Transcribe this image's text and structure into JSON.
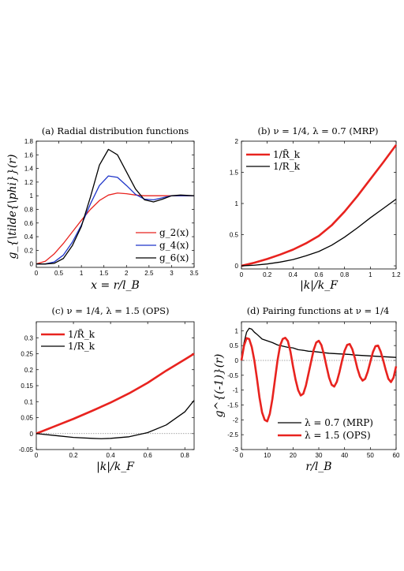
{
  "chart_data": [
    {
      "id": "a",
      "type": "line",
      "title": "(a) Radial distribution functions",
      "xlabel": "x = r/l_B",
      "ylabel": "g_{\\tilde{\\phi}}(r)",
      "xlim": [
        0,
        3.5
      ],
      "ylim": [
        -0.05,
        1.8
      ],
      "xticks": [
        0,
        0.5,
        1,
        1.5,
        2,
        2.5,
        3,
        3.5
      ],
      "xticklabels": [
        "0",
        "0.5",
        "1",
        "1.5",
        "2",
        "2.5",
        "3",
        "3.5"
      ],
      "yticks": [
        0,
        0.2,
        0.4,
        0.6,
        0.8,
        1,
        1.2,
        1.4,
        1.6,
        1.8
      ],
      "yticklabels": [
        "0",
        "0.2",
        "0.4",
        "0.6",
        "0.8",
        "1",
        "1.2",
        "1.4",
        "1.6",
        "1.8"
      ],
      "legend": "bottom-right",
      "series": [
        {
          "name": "g_2(x)",
          "color": "#e8231f",
          "width": 1.3,
          "x": [
            0,
            0.2,
            0.4,
            0.6,
            0.8,
            1.0,
            1.2,
            1.4,
            1.6,
            1.8,
            2.0,
            2.2,
            2.4,
            2.6,
            2.8,
            3.0,
            3.5
          ],
          "y": [
            0,
            0.04,
            0.15,
            0.3,
            0.47,
            0.64,
            0.8,
            0.93,
            1.01,
            1.04,
            1.03,
            1.01,
            1.0,
            1.0,
            1.0,
            1.0,
            1.0
          ]
        },
        {
          "name": "g_4(x)",
          "color": "#1f35c9",
          "width": 1.3,
          "x": [
            0,
            0.2,
            0.4,
            0.6,
            0.8,
            1.0,
            1.2,
            1.4,
            1.6,
            1.8,
            2.0,
            2.2,
            2.4,
            2.6,
            2.8,
            3.0,
            3.2,
            3.5
          ],
          "y": [
            0,
            0.0,
            0.03,
            0.13,
            0.32,
            0.57,
            0.88,
            1.15,
            1.29,
            1.27,
            1.15,
            1.02,
            0.95,
            0.94,
            0.97,
            1.0,
            1.0,
            1.0
          ]
        },
        {
          "name": "g_6(x)",
          "color": "#000000",
          "width": 1.3,
          "x": [
            0,
            0.2,
            0.4,
            0.6,
            0.8,
            1.0,
            1.2,
            1.4,
            1.6,
            1.8,
            2.0,
            2.2,
            2.4,
            2.6,
            2.8,
            3.0,
            3.2,
            3.5
          ],
          "y": [
            0,
            0.0,
            0.01,
            0.08,
            0.27,
            0.55,
            0.98,
            1.45,
            1.68,
            1.6,
            1.35,
            1.1,
            0.94,
            0.91,
            0.95,
            1.0,
            1.01,
            1.0
          ]
        }
      ]
    },
    {
      "id": "b",
      "type": "line",
      "title": "(b) ν = 1/4, λ = 0.7 (MRP)",
      "xlabel": "|k|/k_F",
      "ylabel": "",
      "xlim": [
        0,
        1.2
      ],
      "ylim": [
        -0.05,
        2.0
      ],
      "xticks": [
        0,
        0.2,
        0.4,
        0.6,
        0.8,
        1,
        1.2
      ],
      "xticklabels": [
        "0",
        "0.2",
        "0.4",
        "0.6",
        "0.8",
        "1",
        "1.2"
      ],
      "yticks": [
        0,
        0.5,
        1,
        1.5,
        2
      ],
      "yticklabels": [
        "0",
        "0.5",
        "1",
        "1.5",
        "2"
      ],
      "legend": "top-left",
      "series": [
        {
          "name": "1/R̃_k",
          "color": "#e8231f",
          "width": 2.6,
          "x": [
            0,
            0.1,
            0.2,
            0.3,
            0.4,
            0.5,
            0.6,
            0.7,
            0.8,
            0.9,
            1.0,
            1.1,
            1.2
          ],
          "y": [
            0,
            0.05,
            0.11,
            0.18,
            0.26,
            0.36,
            0.48,
            0.65,
            0.87,
            1.12,
            1.39,
            1.66,
            1.94
          ]
        },
        {
          "name": "1/R_k",
          "color": "#000000",
          "width": 1.3,
          "x": [
            0,
            0.1,
            0.2,
            0.3,
            0.4,
            0.5,
            0.6,
            0.7,
            0.8,
            0.9,
            1.0,
            1.1,
            1.2
          ],
          "y": [
            0,
            0.01,
            0.03,
            0.06,
            0.1,
            0.16,
            0.23,
            0.33,
            0.46,
            0.61,
            0.77,
            0.92,
            1.07
          ]
        }
      ]
    },
    {
      "id": "c",
      "type": "line",
      "title": "(c) ν = 1/4, λ = 1.5 (OPS)",
      "xlabel": "|k|/k_F",
      "ylabel": "",
      "xlim": [
        0,
        0.85
      ],
      "ylim": [
        -0.05,
        0.35
      ],
      "xticks": [
        0,
        0.2,
        0.4,
        0.6,
        0.8
      ],
      "xticklabels": [
        "0",
        "0.2",
        "0.4",
        "0.6",
        "0.8"
      ],
      "yticks": [
        -0.05,
        0,
        0.05,
        0.1,
        0.15,
        0.2,
        0.25,
        0.3
      ],
      "yticklabels": [
        "-0.05",
        "0",
        "0.05",
        "0.1",
        "0.15",
        "0.2",
        "0.25",
        "0.3"
      ],
      "legend": "top-left",
      "zero_line": true,
      "series": [
        {
          "name": "1/R̃_k",
          "color": "#e8231f",
          "width": 2.6,
          "x": [
            0,
            0.1,
            0.2,
            0.3,
            0.4,
            0.5,
            0.6,
            0.7,
            0.8,
            0.85
          ],
          "y": [
            0,
            0.023,
            0.046,
            0.071,
            0.097,
            0.126,
            0.159,
            0.197,
            0.232,
            0.25
          ]
        },
        {
          "name": "1/R_k",
          "color": "#000000",
          "width": 1.3,
          "x": [
            0,
            0.1,
            0.2,
            0.3,
            0.35,
            0.4,
            0.5,
            0.6,
            0.7,
            0.8,
            0.85
          ],
          "y": [
            0,
            -0.006,
            -0.012,
            -0.015,
            -0.016,
            -0.015,
            -0.01,
            0.003,
            0.027,
            0.068,
            0.104
          ]
        }
      ]
    },
    {
      "id": "d",
      "type": "line",
      "title": "(d) Pairing functions at ν = 1/4",
      "xlabel": "r/l_B",
      "ylabel": "g^{(-1)}(r)",
      "xlim": [
        0,
        60
      ],
      "ylim": [
        -3,
        1.3
      ],
      "xticks": [
        0,
        10,
        20,
        30,
        40,
        50,
        60
      ],
      "xticklabels": [
        "0",
        "10",
        "20",
        "30",
        "40",
        "50",
        "60"
      ],
      "yticks": [
        -3,
        -2.5,
        -2,
        -1.5,
        -1,
        -0.5,
        0,
        0.5,
        1
      ],
      "yticklabels": [
        "-3",
        "-2.5",
        "-2",
        "-1.5",
        "-1",
        "-0.5",
        "0",
        "0.5",
        "1"
      ],
      "legend": "bottom-right",
      "zero_line": true,
      "series": [
        {
          "name": "λ = 0.7 (MRP)",
          "color": "#000000",
          "width": 1.3,
          "x": [
            0,
            1,
            2,
            3,
            4,
            5,
            6,
            8,
            10,
            12,
            14,
            16,
            18,
            20,
            22,
            24,
            26,
            28,
            30,
            32,
            34,
            36,
            38,
            40,
            42,
            44,
            46,
            48,
            50,
            52,
            54,
            56,
            58,
            60
          ],
          "y": [
            0,
            0.6,
            0.95,
            1.08,
            1.05,
            0.95,
            0.88,
            0.72,
            0.66,
            0.6,
            0.52,
            0.48,
            0.44,
            0.42,
            0.36,
            0.34,
            0.31,
            0.3,
            0.28,
            0.26,
            0.24,
            0.23,
            0.22,
            0.21,
            0.2,
            0.18,
            0.17,
            0.16,
            0.15,
            0.14,
            0.13,
            0.12,
            0.11,
            0.1
          ]
        },
        {
          "name": "λ = 1.5 (OPS)",
          "color": "#e8231f",
          "width": 2.6,
          "x": [
            0,
            1,
            2,
            3,
            4,
            5,
            6,
            7,
            8,
            9,
            10,
            11,
            12,
            13,
            14,
            15,
            16,
            17,
            18,
            19,
            20,
            21,
            22,
            23,
            24,
            25,
            26,
            27,
            28,
            29,
            30,
            31,
            32,
            33,
            34,
            35,
            36,
            37,
            38,
            39,
            40,
            41,
            42,
            43,
            44,
            45,
            46,
            47,
            48,
            49,
            50,
            51,
            52,
            53,
            54,
            55,
            56,
            57,
            58,
            59,
            60
          ],
          "y": [
            0,
            0.5,
            0.75,
            0.72,
            0.45,
            0.0,
            -0.6,
            -1.25,
            -1.75,
            -2.0,
            -2.05,
            -1.8,
            -1.3,
            -0.65,
            0.0,
            0.5,
            0.72,
            0.76,
            0.65,
            0.3,
            -0.2,
            -0.65,
            -1.0,
            -1.18,
            -1.12,
            -0.85,
            -0.45,
            -0.05,
            0.35,
            0.6,
            0.66,
            0.52,
            0.2,
            -0.2,
            -0.58,
            -0.82,
            -0.88,
            -0.72,
            -0.4,
            -0.02,
            0.32,
            0.52,
            0.55,
            0.38,
            0.08,
            -0.28,
            -0.55,
            -0.68,
            -0.62,
            -0.38,
            -0.05,
            0.28,
            0.48,
            0.5,
            0.3,
            0.0,
            -0.33,
            -0.62,
            -0.73,
            -0.58,
            -0.2
          ]
        }
      ]
    }
  ]
}
